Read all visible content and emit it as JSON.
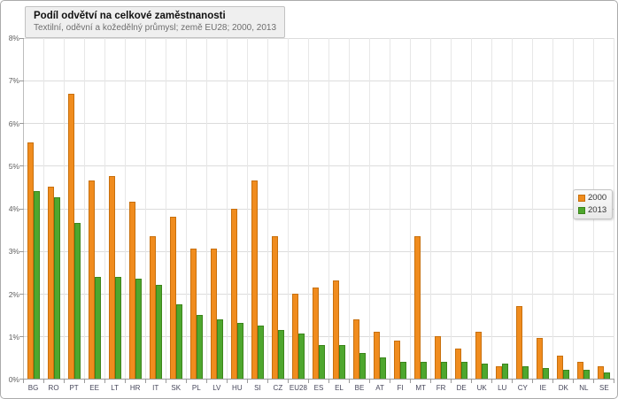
{
  "window": {
    "background": "#FFFFFF",
    "border_color": "#ABABAB"
  },
  "header": {
    "title": "Podíl odvětví na celkové zaměstnanosti",
    "subtitle": "Textilní, oděvní a kožedělný průmysl; země EU28; 2000, 2013"
  },
  "colors": {
    "series_2000_fill": "#F08C1E",
    "series_2000_border": "#C8700D",
    "series_2013_fill": "#4EA72E",
    "series_2013_border": "#3C851B",
    "gridline": "#DCDCDC",
    "axis": "#9A9A9A",
    "title_box_bg": "#EFEFEF"
  },
  "chart_data": {
    "type": "bar",
    "title": "Podíl odvětví na celkové zaměstnanosti",
    "subtitle": "Textilní, oděvní a kožedělný průmysl; země EU28; 2000, 2013",
    "categories": [
      "BG",
      "RO",
      "PT",
      "EE",
      "LT",
      "HR",
      "IT",
      "SK",
      "PL",
      "LV",
      "HU",
      "SI",
      "CZ",
      "EU28",
      "ES",
      "EL",
      "BE",
      "AT",
      "FI",
      "MT",
      "FR",
      "DE",
      "UK",
      "LU",
      "CY",
      "IE",
      "DK",
      "NL",
      "SE"
    ],
    "series": [
      {
        "name": "2000",
        "color": "#F08C1E",
        "border_color": "#C8700D",
        "values": [
          5.55,
          4.5,
          6.7,
          4.65,
          4.75,
          4.15,
          3.35,
          3.8,
          3.05,
          3.05,
          4.0,
          4.65,
          3.35,
          2.0,
          2.15,
          2.3,
          1.4,
          1.1,
          0.9,
          3.35,
          1.0,
          0.7,
          1.1,
          0.3,
          1.7,
          0.95,
          0.55,
          0.4,
          0.3
        ]
      },
      {
        "name": "2013",
        "color": "#4EA72E",
        "border_color": "#3C851B",
        "values": [
          4.4,
          4.25,
          3.65,
          2.4,
          2.4,
          2.35,
          2.2,
          1.75,
          1.5,
          1.4,
          1.3,
          1.25,
          1.15,
          1.05,
          0.8,
          0.8,
          0.6,
          0.5,
          0.4,
          0.4,
          0.4,
          0.4,
          0.35,
          0.35,
          0.3,
          0.25,
          0.2,
          0.2,
          0.15
        ]
      }
    ],
    "xlabel": "",
    "ylabel": "",
    "ylim": [
      0,
      8
    ],
    "ytick_step": 1,
    "yticks": [
      "0%",
      "1%",
      "2%",
      "3%",
      "4%",
      "5%",
      "6%",
      "7%",
      "8%"
    ],
    "grid": true,
    "legend_position": "right"
  }
}
